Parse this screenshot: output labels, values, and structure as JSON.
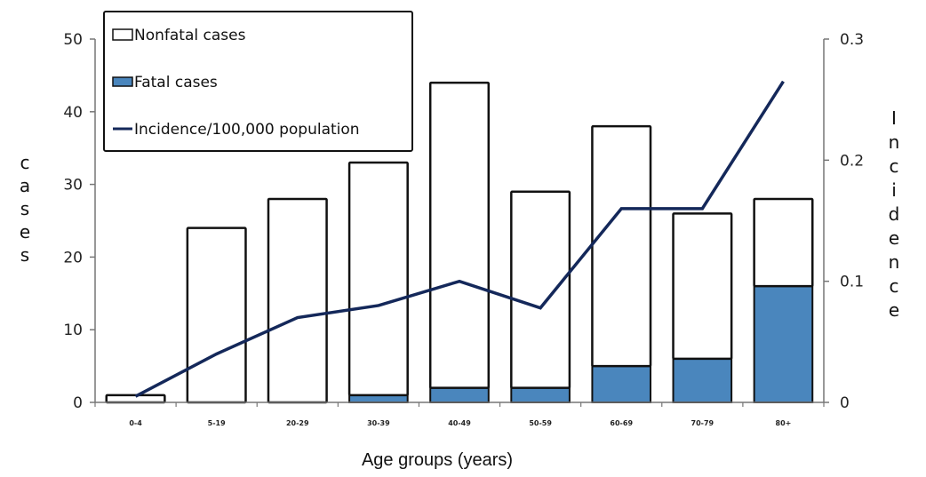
{
  "chart_data": {
    "type": "bar",
    "stacked": true,
    "title": "",
    "xlabel": "Age groups (years)",
    "ylabel": "cases",
    "y2label": "Incidence",
    "categories": [
      "0-4",
      "5-19",
      "20-29",
      "30-39",
      "40-49",
      "50-59",
      "60-69",
      "70-79",
      "80+"
    ],
    "ylim": [
      0,
      50
    ],
    "yticks": [
      "0",
      "10",
      "20",
      "30",
      "40",
      "50"
    ],
    "y2lim": [
      0,
      0.3
    ],
    "y2ticks": [
      "0",
      "0.1",
      "0.2",
      "0.3"
    ],
    "series": [
      {
        "name": "Fatal cases",
        "type": "bar",
        "axis": "left",
        "color": "#4a86bd",
        "values": [
          0,
          0,
          0,
          1,
          2,
          2,
          5,
          6,
          16
        ]
      },
      {
        "name": "Nonfatal cases",
        "type": "bar",
        "axis": "left",
        "color": "#ffffff",
        "values": [
          1,
          24,
          28,
          32,
          42,
          27,
          33,
          20,
          12
        ]
      },
      {
        "name": "Incidence/100,000 population",
        "type": "line",
        "axis": "right",
        "color": "#14285a",
        "values": [
          0.005,
          0.04,
          0.07,
          0.08,
          0.1,
          0.078,
          0.16,
          0.16,
          0.265
        ]
      }
    ],
    "legend": {
      "position": "top-left",
      "items": [
        {
          "label": "Nonfatal cases",
          "swatch": "box-white"
        },
        {
          "label": "Fatal cases",
          "swatch": "box-blue"
        },
        {
          "label": "Incidence/100,000 population",
          "swatch": "line"
        }
      ]
    },
    "grid": false
  }
}
